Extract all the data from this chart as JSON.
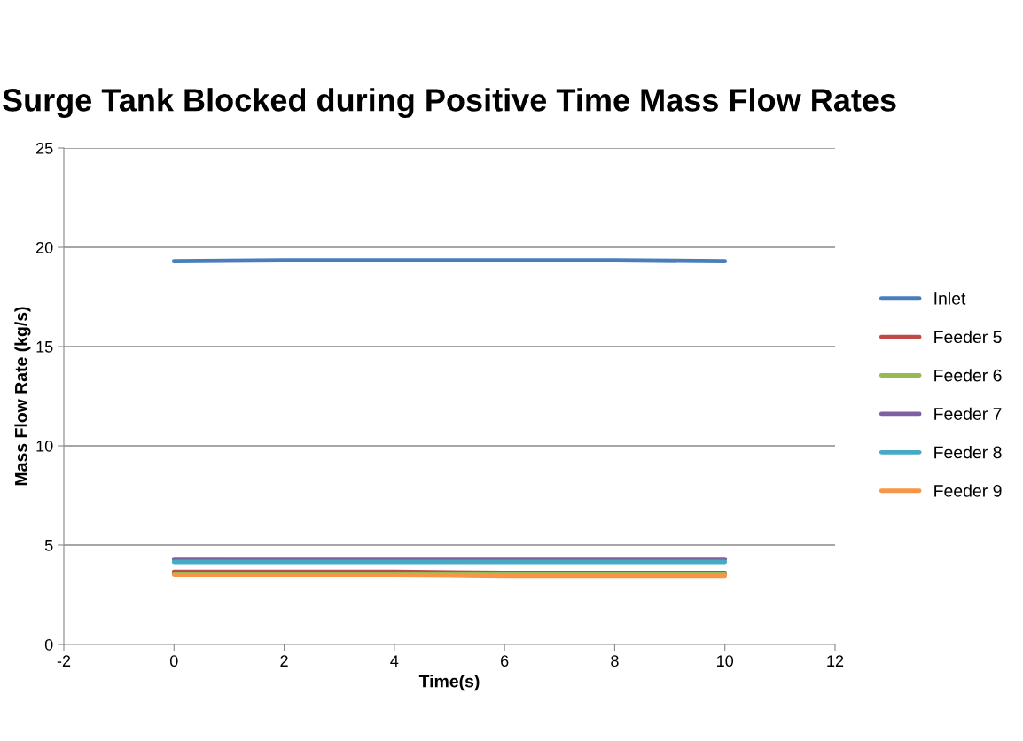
{
  "chart_data": {
    "type": "line",
    "title": "Surge Tank Blocked during Positive Time Mass Flow Rates",
    "xlabel": "Time(s)",
    "ylabel": "Mass Flow Rate (kg/s)",
    "x": [
      0,
      2,
      4,
      6,
      8,
      10
    ],
    "series": [
      {
        "name": "Inlet",
        "color": "#4a7ebb",
        "values": [
          19.3,
          19.35,
          19.35,
          19.35,
          19.35,
          19.3
        ]
      },
      {
        "name": "Feeder 5",
        "color": "#be4b48",
        "values": [
          3.65,
          3.65,
          3.65,
          3.6,
          3.6,
          3.6
        ]
      },
      {
        "name": "Feeder 6",
        "color": "#98b954",
        "values": [
          3.55,
          3.55,
          3.55,
          3.55,
          3.55,
          3.55
        ]
      },
      {
        "name": "Feeder 7",
        "color": "#7d60a0",
        "values": [
          4.3,
          4.3,
          4.3,
          4.3,
          4.3,
          4.3
        ]
      },
      {
        "name": "Feeder 8",
        "color": "#46aac5",
        "values": [
          4.15,
          4.15,
          4.15,
          4.15,
          4.15,
          4.15
        ]
      },
      {
        "name": "Feeder 9",
        "color": "#f79646",
        "values": [
          3.5,
          3.5,
          3.5,
          3.45,
          3.45,
          3.45
        ]
      }
    ],
    "xlim": [
      -2,
      12
    ],
    "xticks": [
      -2,
      0,
      2,
      4,
      6,
      8,
      10,
      12
    ],
    "ylim": [
      0,
      25
    ],
    "yticks": [
      0,
      5,
      10,
      15,
      20,
      25
    ],
    "grid": "y",
    "legend": "right",
    "marker": "none",
    "line_style": "solid"
  }
}
